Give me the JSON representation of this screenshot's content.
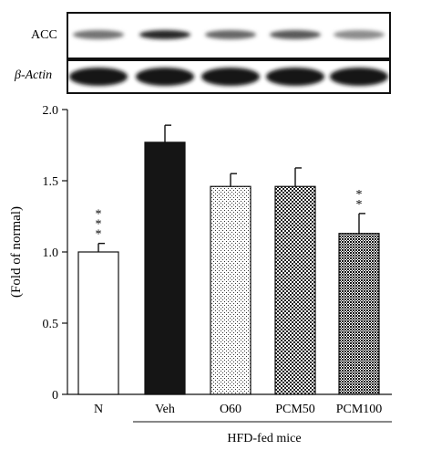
{
  "blot": {
    "rows": [
      {
        "label": "ACC",
        "intensity": [
          0.55,
          0.85,
          0.6,
          0.65,
          0.45
        ]
      },
      {
        "label": "β-Actin",
        "intensity": [
          0.9,
          0.9,
          0.9,
          0.9,
          0.9
        ]
      }
    ]
  },
  "chart_data": {
    "type": "bar",
    "ylabel": "(Fold of normal)",
    "xlabel": "",
    "ylim": [
      0,
      2.0
    ],
    "yticks": [
      "0",
      "0.5",
      "1.0",
      "1.5",
      "2.0"
    ],
    "ytick_values": [
      0,
      0.5,
      1.0,
      1.5,
      2.0
    ],
    "categories": [
      "N",
      "Veh",
      "O60",
      "PCM50",
      "PCM100"
    ],
    "values": [
      1.0,
      1.77,
      1.46,
      1.46,
      1.13
    ],
    "errors": [
      0.06,
      0.12,
      0.09,
      0.13,
      0.14
    ],
    "fills": [
      "white",
      "black",
      "dots-sparse",
      "checker-medium",
      "checker-dense"
    ],
    "annotations": [
      "***",
      "",
      "",
      "",
      "**"
    ],
    "group_label": "HFD-fed mice",
    "group_members": [
      "Veh",
      "O60",
      "PCM50",
      "PCM100"
    ]
  }
}
